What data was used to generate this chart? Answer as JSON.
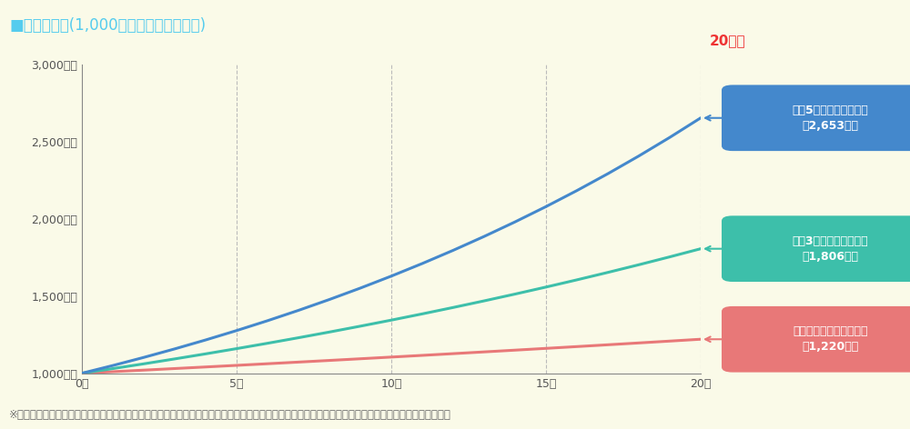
{
  "title": "■複利の効果(1,000万円を運用した場合)",
  "title_color": "#55CCEE",
  "bg_color": "#FAFAE8",
  "years": [
    0,
    1,
    2,
    3,
    4,
    5,
    6,
    7,
    8,
    9,
    10,
    11,
    12,
    13,
    14,
    15,
    16,
    17,
    18,
    19,
    20
  ],
  "initial": 1000,
  "rates": [
    0.01,
    0.03,
    0.05
  ],
  "line_colors": [
    "#E87878",
    "#3DBFAA",
    "#4488CC"
  ],
  "ylim_min": 1000,
  "ylim_max": 3000,
  "yticks": [
    1000,
    1500,
    2000,
    2500,
    3000
  ],
  "ytick_labels": [
    "1,000万円",
    "1,500万円",
    "2,000万円",
    "2,500万円",
    "3,000万円"
  ],
  "xticks": [
    0,
    5,
    10,
    15,
    20
  ],
  "xtick_labels": [
    "0年",
    "5年",
    "10年",
    "15年",
    "20年"
  ],
  "vlines": [
    5,
    10,
    15,
    20
  ],
  "label_20yr": "20年後",
  "label_20yr_color": "#EE3333",
  "annotations": [
    {
      "label": "年玄5％で運用できれば\n約2,653万円",
      "value": 2653,
      "box_color": "#4488CC"
    },
    {
      "label": "年玄3％で運用できれば\n約1,806万円",
      "value": 1806,
      "box_color": "#3DBFAA"
    },
    {
      "label": "年率１％で運用できれば\n約1,220万円",
      "value": 1220,
      "box_color": "#E87878"
    }
  ],
  "footnote": "※上記は複利計算によるシミュレーション（概算）であり、将来の成果をお約束するものではありません。また、手数料や税金等は考慮しておりません。",
  "footnote_color": "#666666",
  "footnote_size": 8.5
}
